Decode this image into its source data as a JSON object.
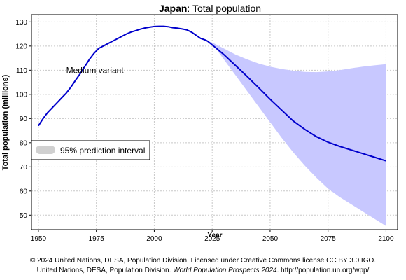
{
  "chart_data": {
    "type": "line",
    "title": {
      "country": "Japan",
      "sep": ":",
      "rest": " Total population"
    },
    "xlabel": "Year",
    "ylabel": "Total population (millions)",
    "xlim": [
      1947,
      2105
    ],
    "ylim": [
      44,
      133
    ],
    "x_ticks": [
      1950,
      1975,
      2000,
      2025,
      2050,
      2075,
      2100
    ],
    "y_ticks": [
      50,
      60,
      70,
      80,
      90,
      100,
      110,
      120,
      130
    ],
    "grid": true,
    "legend": {
      "placement": "left",
      "label": "95% prediction interval"
    },
    "annotations": [
      {
        "text": "Medium variant",
        "x": 1962,
        "y": 110
      }
    ],
    "colors": {
      "line": "#0000cc",
      "band": "#c8c8ff",
      "legend_swatch": "#d0d0d0",
      "grid": "#c8c8c8"
    },
    "series": [
      {
        "name": "Medium variant",
        "x": [
          1950,
          1952,
          1954,
          1956,
          1958,
          1960,
          1962,
          1964,
          1966,
          1968,
          1970,
          1972,
          1974,
          1976,
          1978,
          1980,
          1982,
          1984,
          1986,
          1988,
          1990,
          1992,
          1994,
          1996,
          1998,
          2000,
          2002,
          2004,
          2006,
          2008,
          2010,
          2012,
          2014,
          2016,
          2018,
          2020,
          2022,
          2023,
          2025,
          2030,
          2035,
          2040,
          2045,
          2050,
          2055,
          2060,
          2065,
          2070,
          2075,
          2080,
          2085,
          2090,
          2095,
          2100
        ],
        "values": [
          87,
          90,
          92.5,
          94.5,
          96.5,
          98.5,
          100.5,
          103,
          105.8,
          108.5,
          111.5,
          114.5,
          117,
          119,
          120,
          121,
          122,
          123,
          124,
          125,
          125.8,
          126.4,
          127,
          127.5,
          127.8,
          128.1,
          128.2,
          128.2,
          128,
          127.6,
          127.4,
          127.1,
          126.7,
          125.8,
          124.5,
          123.2,
          122.5,
          122,
          120.5,
          116.5,
          112,
          107.5,
          102.8,
          98,
          93.5,
          89,
          85.5,
          82.5,
          80.2,
          78.5,
          77,
          75.5,
          74,
          72.5
        ]
      }
    ],
    "interval": {
      "x": [
        2023,
        2025,
        2030,
        2035,
        2040,
        2045,
        2050,
        2055,
        2060,
        2065,
        2070,
        2075,
        2080,
        2085,
        2090,
        2095,
        2100
      ],
      "upper": [
        122,
        121.5,
        119,
        116.5,
        114.5,
        112.8,
        111.5,
        110.5,
        109.8,
        109.3,
        109.2,
        109.5,
        110,
        110.8,
        111.5,
        112,
        112.5
      ],
      "lower": [
        122,
        121,
        114.5,
        108,
        101.5,
        95,
        88.5,
        82,
        76,
        70.5,
        65.5,
        61,
        57.5,
        54.5,
        51.5,
        48.5,
        45.5
      ]
    }
  },
  "credits": {
    "line1": "© 2024 United Nations, DESA, Population Division. Licensed under Creative Commons license CC BY 3.0 IGO.",
    "line2_prefix": "United Nations, DESA, Population Division. ",
    "line2_title": "World Population Prospects 2024",
    "line2_suffix": ". http://population.un.org/wpp/"
  }
}
